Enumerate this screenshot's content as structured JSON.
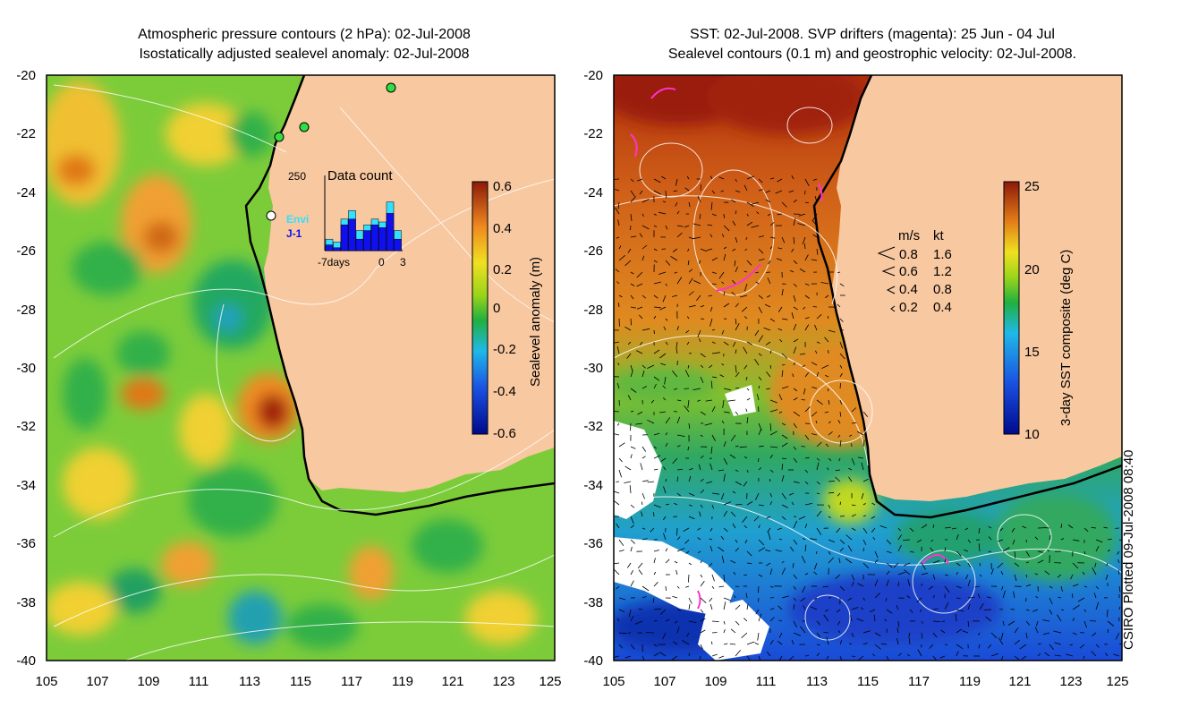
{
  "left_panel": {
    "title_line1": "Atmospheric pressure contours (2 hPa): 02-Jul-2008",
    "title_line2": "Isostatically adjusted sealevel anomaly: 02-Jul-2008",
    "y_ticks": [
      "-20",
      "-22",
      "-24",
      "-26",
      "-28",
      "-30",
      "-32",
      "-34",
      "-36",
      "-38",
      "-40"
    ],
    "x_ticks": [
      "105",
      "107",
      "109",
      "111",
      "113",
      "115",
      "117",
      "119",
      "121",
      "123",
      "125"
    ],
    "colorbar": {
      "label": "Sealevel anomaly (m)",
      "ticks": [
        "0.6",
        "0.4",
        "0.2",
        "0",
        "-0.2",
        "-0.4",
        "-0.6"
      ]
    },
    "inset": {
      "title": "Data count",
      "ymax_label": "250",
      "x_labels": [
        "-7days",
        "0",
        "3"
      ],
      "legend_envi": "Envi",
      "legend_j1": "J-1",
      "envi_color": "#33e0ff",
      "j1_color": "#1010ee",
      "envi_counts": [
        40,
        30,
        110,
        140,
        70,
        90,
        110,
        100,
        170,
        70
      ],
      "j1_counts": [
        20,
        10,
        90,
        110,
        40,
        70,
        90,
        80,
        130,
        40
      ]
    }
  },
  "right_panel": {
    "title_line1": "SST: 02-Jul-2008. SVP drifters (magenta): 25 Jun - 04 Jul",
    "title_line2": "Sealevel contours (0.1 m) and geostrophic velocity: 02-Jul-2008.",
    "y_ticks": [
      "-20",
      "-22",
      "-24",
      "-26",
      "-28",
      "-30",
      "-32",
      "-34",
      "-36",
      "-38",
      "-40"
    ],
    "x_ticks": [
      "105",
      "107",
      "109",
      "111",
      "113",
      "115",
      "117",
      "119",
      "121",
      "123",
      "125"
    ],
    "colorbar": {
      "label": "3-day SST composite (deg C)",
      "ticks": [
        "25",
        "20",
        "15",
        "10"
      ]
    },
    "velocity_legend": {
      "header_ms": "m/s",
      "header_kt": "kt",
      "rows": [
        {
          "ms": "0.8",
          "kt": "1.6"
        },
        {
          "ms": "0.6",
          "kt": "1.2"
        },
        {
          "ms": "0.4",
          "kt": "0.8"
        },
        {
          "ms": "0.2",
          "kt": "0.4"
        }
      ]
    }
  },
  "colors": {
    "land": "#f8c8a0",
    "drifter": "#ff33cc"
  },
  "credit": "CSIRO Plotted 09-Jul-2008 08:40"
}
